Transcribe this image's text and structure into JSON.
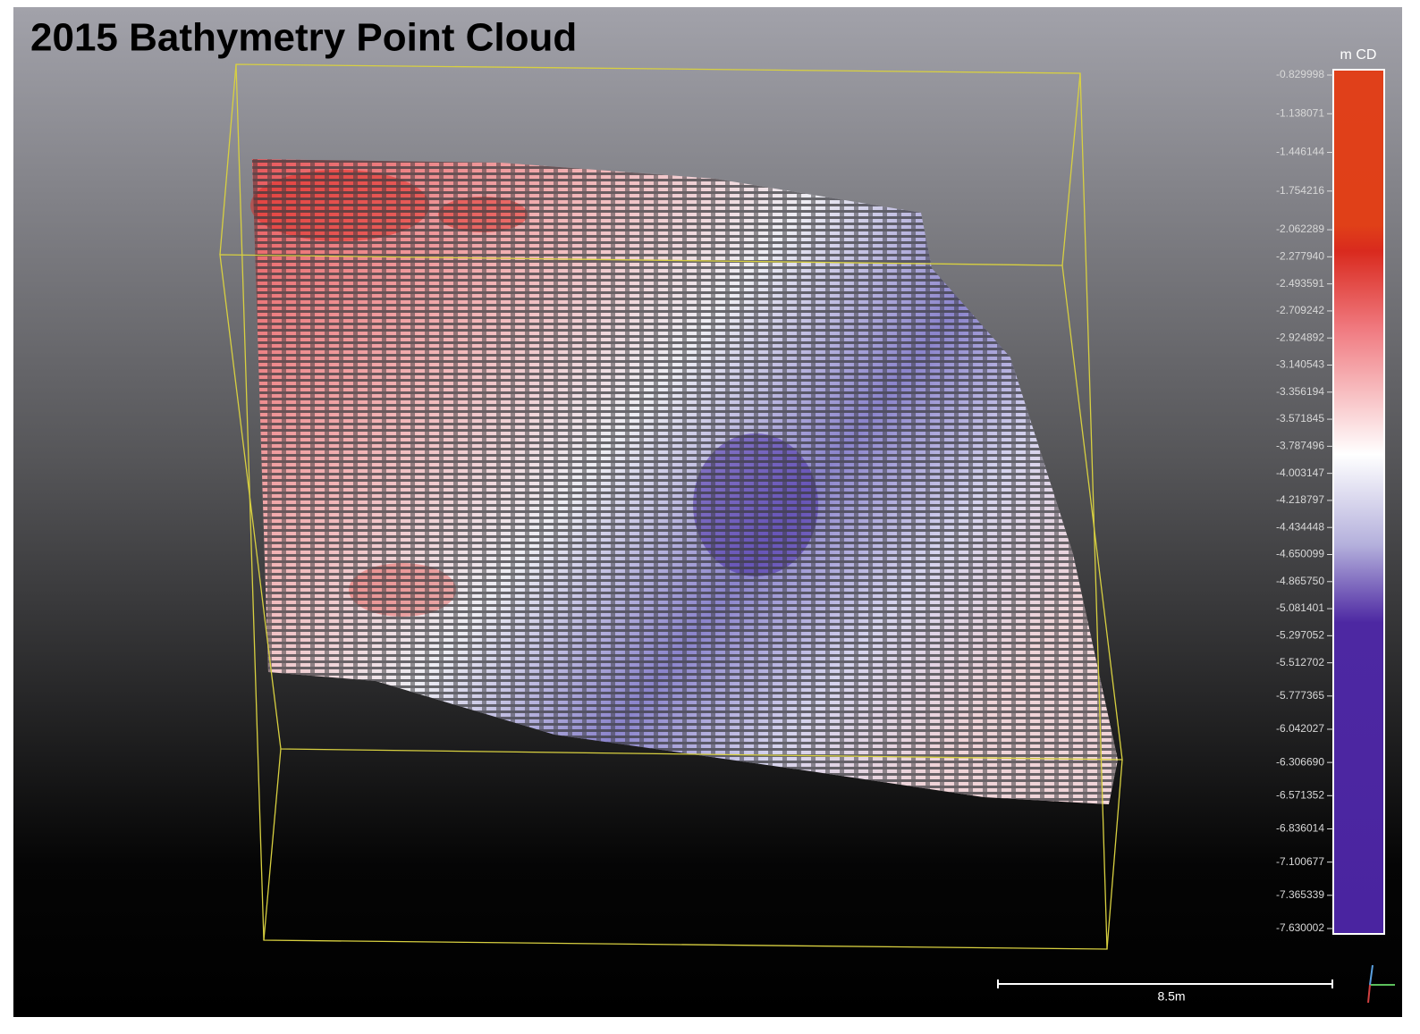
{
  "header": {
    "title": "2015 Bathymetry Point Cloud"
  },
  "color_scale": {
    "title": "m CD",
    "lim": [
      -7.630002,
      -0.829998
    ],
    "ticks": [
      -0.829998,
      -1.138071,
      -1.446144,
      -1.754216,
      -2.062289,
      {
        "value": -2.27794,
        "label": "-2.277940"
      },
      -2.493591,
      -2.709242,
      -2.924892,
      -3.140543,
      -3.356194,
      -3.571845,
      -3.787496,
      -4.003147,
      -4.218797,
      -4.434448,
      -4.650099,
      {
        "value": -4.86575,
        "label": "-4.865750"
      },
      -5.081401,
      -5.297052,
      -5.512702,
      -5.777365,
      -6.042027,
      {
        "value": -6.30669,
        "label": "-6.306690"
      },
      -6.571352,
      -6.836014,
      -7.100677,
      -7.365339,
      -7.630002
    ]
  },
  "scale_bar": {
    "label": "8.5m"
  }
}
